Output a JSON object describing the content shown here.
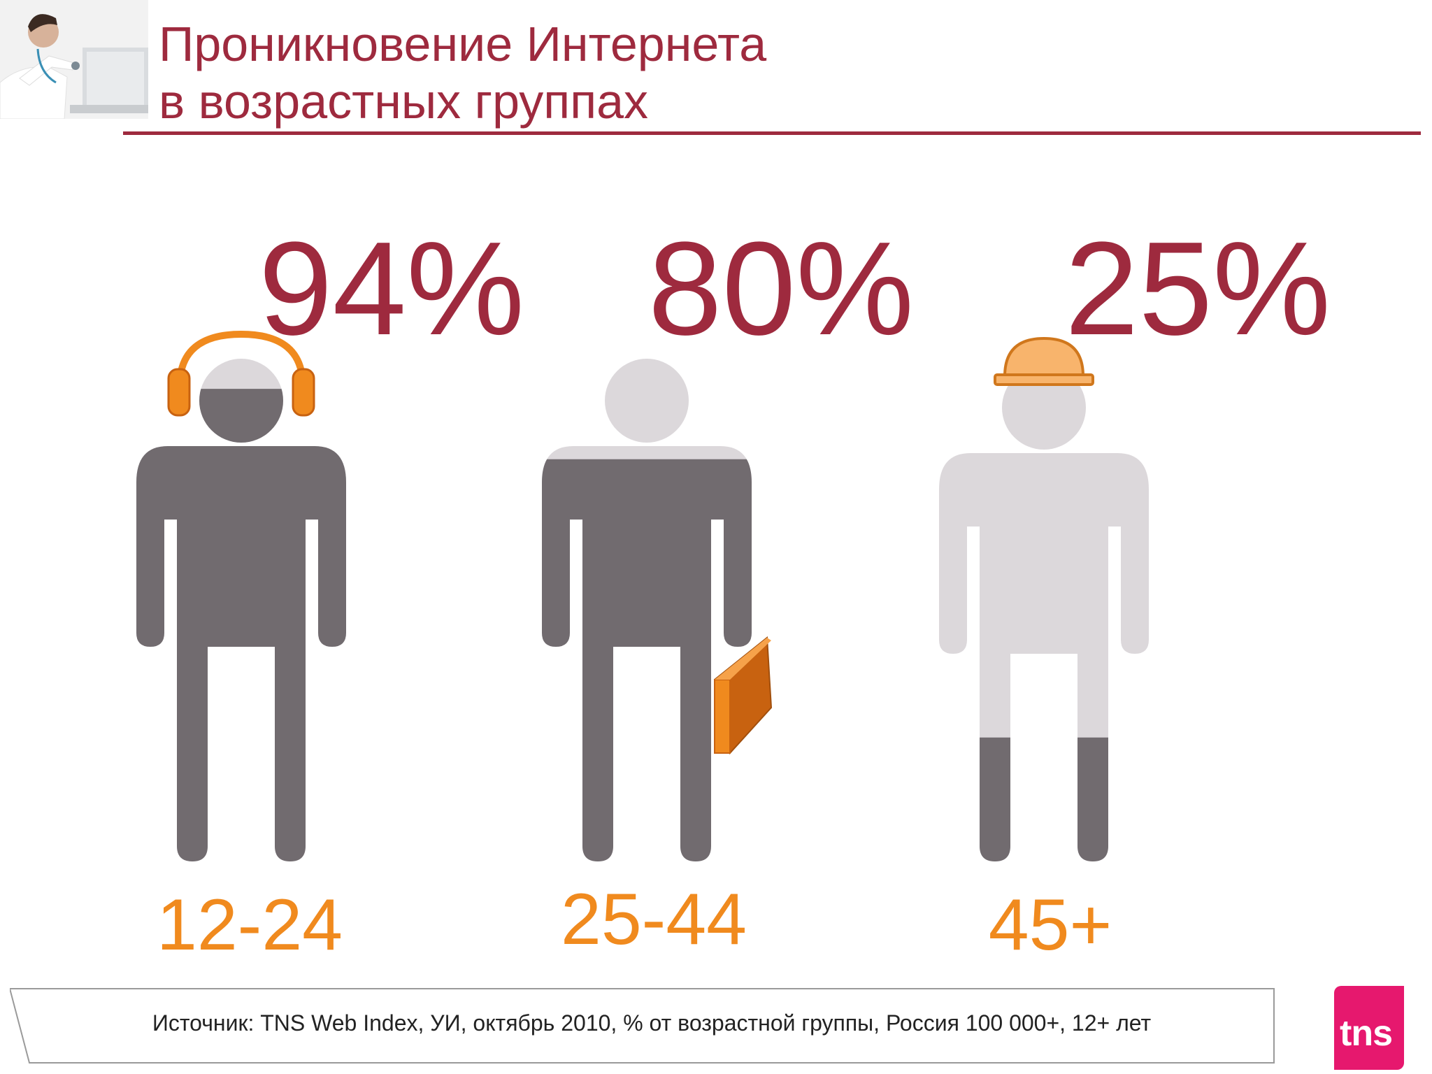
{
  "title": {
    "line1": "Проникновение Интернета",
    "line2": "в возрастных группах"
  },
  "chart_data": {
    "type": "pictogram",
    "title": "Проникновение Интернета в возрастных группах",
    "unit": "%",
    "categories": [
      "12-24",
      "25-44",
      "45+"
    ],
    "values": [
      94,
      80,
      25
    ],
    "value_labels": [
      "94%",
      "80%",
      "25%"
    ],
    "figure_accessories": [
      "headphones",
      "briefcase",
      "hard-hat"
    ],
    "ylim": [
      0,
      100
    ]
  },
  "colors": {
    "accent": "#9e2a3e",
    "orange": "#f08a1e",
    "filled": "#716b6f",
    "empty": "#dcd8db"
  },
  "source": "Источник: TNS Web Index, УИ, октябрь 2010, % от возрастной группы, Россия 100 000+, 12+ лет",
  "logo_text": "tns"
}
